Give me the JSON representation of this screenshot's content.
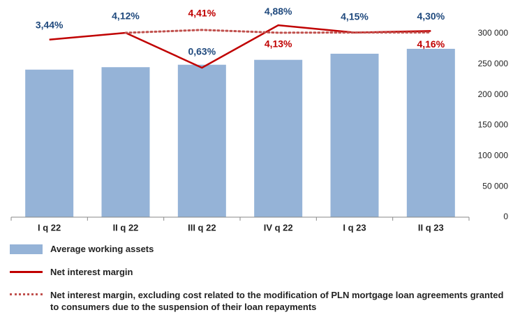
{
  "chart_data": {
    "type": "bar",
    "categories": [
      "I q 22",
      "II q 22",
      "III q 22",
      "IV q 22",
      "I q 23",
      "II q 23"
    ],
    "series": [
      {
        "name": "Average working assets",
        "type": "bar",
        "axis": "y2",
        "color": "#95b3d7",
        "values": [
          241000,
          245000,
          249000,
          257000,
          267000,
          275000
        ]
      },
      {
        "name": "Net interest margin",
        "type": "line",
        "style": "solid",
        "color": "#c00000",
        "label_color": "#1f497d",
        "values": [
          3.44,
          4.12,
          0.63,
          4.88,
          4.15,
          4.3
        ],
        "value_labels": [
          "3,44%",
          "4,12%",
          "0,63%",
          "4,88%",
          "4,15%",
          "4,30%"
        ]
      },
      {
        "name": "Net interest margin, excluding cost related to the modification of PLN mortgage loan agreements granted to consumers due to the suspension of their loan repayments",
        "type": "line",
        "style": "dotted",
        "color": "#c0504d",
        "label_color": "#c00000",
        "values": [
          null,
          4.12,
          4.41,
          4.13,
          4.15,
          4.16
        ],
        "value_labels": [
          null,
          null,
          "4,41%",
          "4,13%",
          null,
          "4,16%"
        ]
      }
    ],
    "ylim": [
      -14.3,
      4.05
    ],
    "y2lim": [
      0,
      300000
    ],
    "y2ticks": [
      0,
      {
        "value": 50000,
        "label": "50 000"
      },
      {
        "value": 100000,
        "label": "100 000"
      },
      {
        "value": 150000,
        "label": "150 000"
      },
      {
        "value": 200000,
        "label": "200 000"
      },
      {
        "value": 250000,
        "label": "250 000"
      },
      {
        "value": 300000,
        "label": "300 000"
      }
    ],
    "legend": "bottom"
  }
}
